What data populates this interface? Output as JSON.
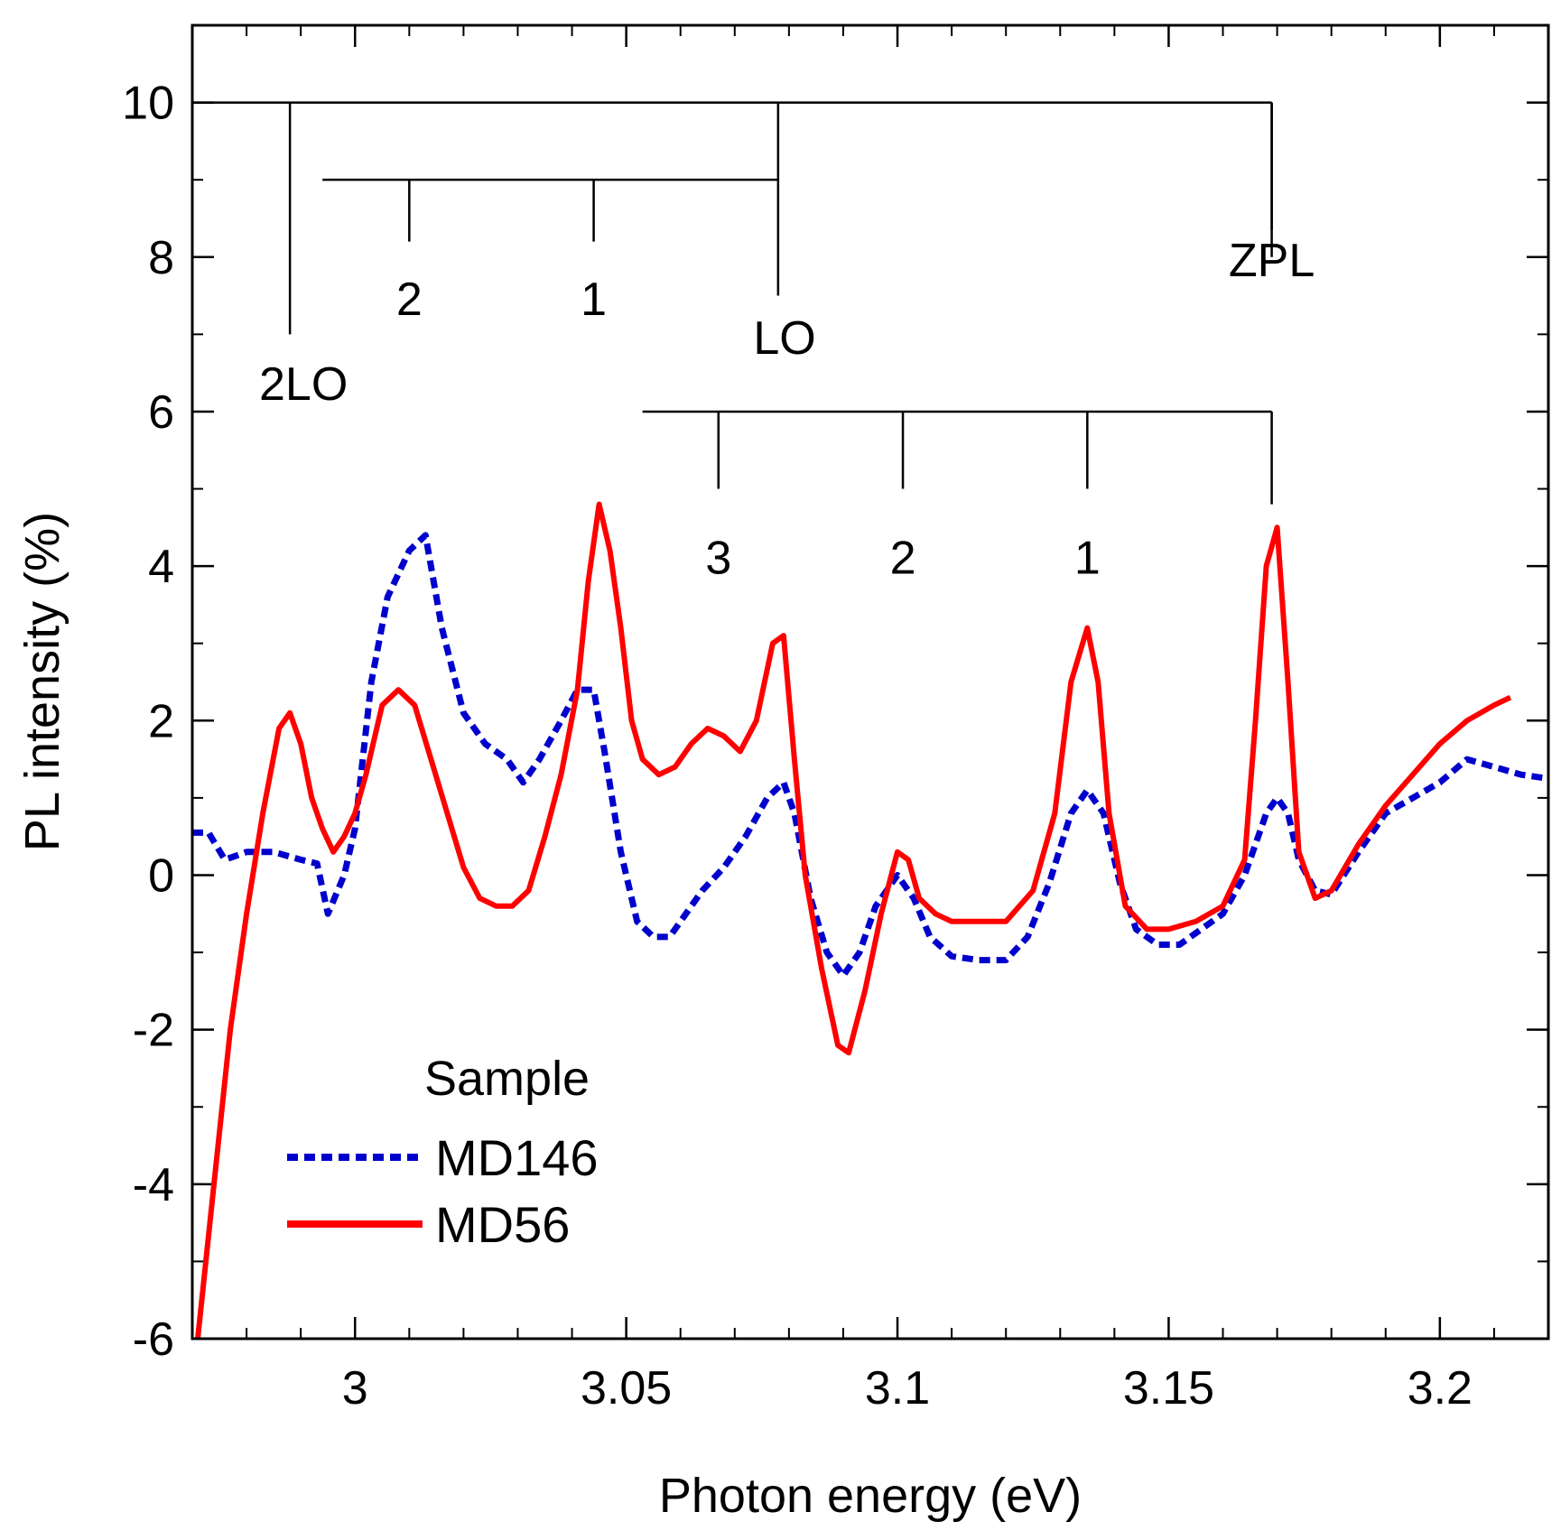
{
  "chart_data": {
    "type": "line",
    "xlabel": "Photon energy (eV)",
    "ylabel": "PL intensity (%)",
    "xlim": [
      2.97,
      3.22
    ],
    "ylim": [
      -6,
      11
    ],
    "x_ticks": [
      {
        "value": 3.0,
        "label": "3"
      },
      {
        "value": 3.05,
        "label": "3.05"
      },
      {
        "value": 3.1,
        "label": "3.1"
      },
      {
        "value": 3.15,
        "label": "3.15"
      },
      {
        "value": 3.2,
        "label": "3.2"
      }
    ],
    "x_minor_step": 0.01,
    "y_ticks": [
      {
        "value": -6,
        "label": "-6"
      },
      {
        "value": -4,
        "label": "-4"
      },
      {
        "value": -2,
        "label": "-2"
      },
      {
        "value": 0,
        "label": "0"
      },
      {
        "value": 2,
        "label": "2"
      },
      {
        "value": 4,
        "label": "4"
      },
      {
        "value": 6,
        "label": "6"
      },
      {
        "value": 8,
        "label": "8"
      },
      {
        "value": 10,
        "label": "10"
      }
    ],
    "y_minor_step": 1,
    "legend": {
      "title": "Sample",
      "position": "lower-left",
      "entries": [
        {
          "name": "MD146",
          "color": "#0000cc",
          "style": "dashed"
        },
        {
          "name": "MD56",
          "color": "#ff0000",
          "style": "solid"
        }
      ]
    },
    "series": [
      {
        "name": "MD146",
        "color": "#0000cc",
        "style": "dashed",
        "x": [
          2.97,
          2.973,
          2.976,
          2.98,
          2.985,
          2.99,
          2.993,
          2.995,
          2.998,
          3.0,
          3.003,
          3.006,
          3.01,
          3.013,
          3.016,
          3.02,
          3.024,
          3.028,
          3.031,
          3.034,
          3.038,
          3.041,
          3.044,
          3.046,
          3.049,
          3.052,
          3.055,
          3.058,
          3.061,
          3.064,
          3.068,
          3.072,
          3.076,
          3.079,
          3.081,
          3.084,
          3.087,
          3.09,
          3.093,
          3.096,
          3.1,
          3.103,
          3.106,
          3.11,
          3.115,
          3.12,
          3.124,
          3.128,
          3.132,
          3.135,
          3.138,
          3.141,
          3.144,
          3.148,
          3.152,
          3.156,
          3.16,
          3.164,
          3.168,
          3.17,
          3.172,
          3.174,
          3.177,
          3.18,
          3.185,
          3.19,
          3.195,
          3.2,
          3.205,
          3.21,
          3.215,
          3.22
        ],
        "y": [
          0.55,
          0.55,
          0.2,
          0.3,
          0.3,
          0.2,
          0.15,
          -0.5,
          0.0,
          0.6,
          2.5,
          3.6,
          4.2,
          4.4,
          3.2,
          2.1,
          1.7,
          1.5,
          1.2,
          1.5,
          2.0,
          2.4,
          2.4,
          1.6,
          0.3,
          -0.6,
          -0.8,
          -0.8,
          -0.5,
          -0.2,
          0.1,
          0.5,
          1.0,
          1.2,
          0.8,
          -0.3,
          -1.0,
          -1.3,
          -1.0,
          -0.4,
          0.0,
          -0.3,
          -0.8,
          -1.05,
          -1.1,
          -1.1,
          -0.8,
          -0.1,
          0.8,
          1.1,
          0.8,
          -0.1,
          -0.7,
          -0.9,
          -0.9,
          -0.7,
          -0.5,
          0.0,
          0.8,
          1.0,
          0.8,
          0.2,
          -0.2,
          -0.25,
          0.3,
          0.8,
          1.0,
          1.2,
          1.5,
          1.4,
          1.3,
          1.25
        ]
      },
      {
        "name": "MD56",
        "color": "#ff0000",
        "style": "solid",
        "x": [
          2.971,
          2.974,
          2.977,
          2.98,
          2.983,
          2.986,
          2.988,
          2.99,
          2.992,
          2.994,
          2.996,
          2.998,
          3.0,
          3.002,
          3.005,
          3.008,
          3.011,
          3.014,
          3.017,
          3.02,
          3.023,
          3.026,
          3.029,
          3.032,
          3.035,
          3.038,
          3.041,
          3.043,
          3.045,
          3.047,
          3.049,
          3.051,
          3.053,
          3.056,
          3.059,
          3.062,
          3.065,
          3.068,
          3.071,
          3.074,
          3.077,
          3.079,
          3.081,
          3.083,
          3.086,
          3.089,
          3.091,
          3.094,
          3.097,
          3.1,
          3.102,
          3.104,
          3.107,
          3.11,
          3.115,
          3.12,
          3.125,
          3.129,
          3.132,
          3.135,
          3.137,
          3.139,
          3.142,
          3.146,
          3.15,
          3.155,
          3.16,
          3.164,
          3.166,
          3.168,
          3.17,
          3.172,
          3.174,
          3.177,
          3.18,
          3.185,
          3.19,
          3.195,
          3.2,
          3.205,
          3.21,
          3.213
        ],
        "y": [
          -6.0,
          -4.0,
          -2.0,
          -0.5,
          0.8,
          1.9,
          2.1,
          1.7,
          1.0,
          0.6,
          0.3,
          0.5,
          0.8,
          1.3,
          2.2,
          2.4,
          2.2,
          1.5,
          0.8,
          0.1,
          -0.3,
          -0.4,
          -0.4,
          -0.2,
          0.5,
          1.3,
          2.4,
          3.8,
          4.8,
          4.2,
          3.2,
          2.0,
          1.5,
          1.3,
          1.4,
          1.7,
          1.9,
          1.8,
          1.6,
          2.0,
          3.0,
          3.1,
          1.5,
          0.0,
          -1.2,
          -2.2,
          -2.3,
          -1.5,
          -0.5,
          0.3,
          0.2,
          -0.3,
          -0.5,
          -0.6,
          -0.6,
          -0.6,
          -0.2,
          0.8,
          2.5,
          3.2,
          2.5,
          0.8,
          -0.4,
          -0.7,
          -0.7,
          -0.6,
          -0.4,
          0.2,
          2.0,
          4.0,
          4.5,
          2.5,
          0.3,
          -0.3,
          -0.2,
          0.4,
          0.9,
          1.3,
          1.7,
          2.0,
          2.2,
          2.3
        ]
      }
    ],
    "annotations": {
      "zpl_ladder": {
        "label": "ZPL",
        "level_y": 6.0,
        "bar_start_x": 3.053,
        "ticks": [
          {
            "x": 3.067,
            "label": "3"
          },
          {
            "x": 3.101,
            "label": "2"
          },
          {
            "x": 3.135,
            "label": "1"
          },
          {
            "x": 3.169,
            "label": ""
          }
        ]
      },
      "top_ladder": {
        "level_y": 10.0,
        "bar_start_x": 2.97,
        "bar_end_x": 3.169,
        "ticks": [
          {
            "x": 2.988,
            "to_y": 7.0,
            "label": "2LO"
          },
          {
            "x": 3.078,
            "to_y": 7.5,
            "label": "LO"
          },
          {
            "x": 3.169,
            "to_y": 8.0,
            "label": "ZPL"
          }
        ]
      },
      "lo_ladder": {
        "level_y": 9.0,
        "bar_start_x": 2.994,
        "bar_end_x": 3.078,
        "ticks": [
          {
            "x": 3.01,
            "to_y": 8.2,
            "label": "2"
          },
          {
            "x": 3.044,
            "to_y": 8.2,
            "label": "1"
          }
        ]
      }
    }
  }
}
